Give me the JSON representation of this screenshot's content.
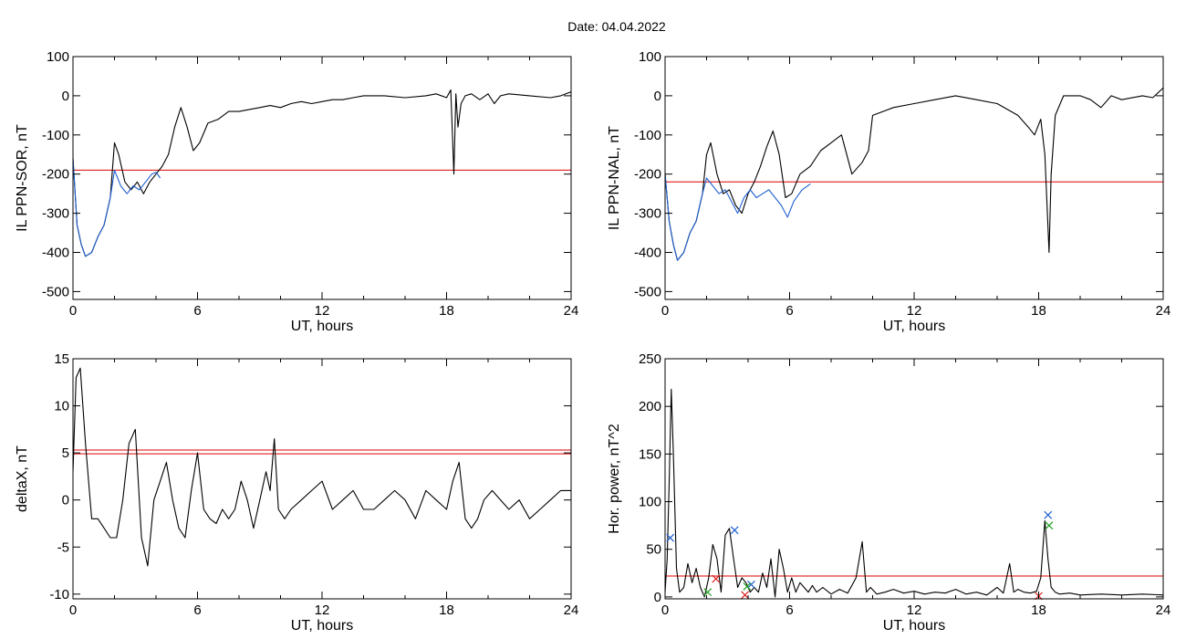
{
  "figure_title": "Date:  04.04.2022",
  "chart_data": [
    {
      "type": "line",
      "id": "sor",
      "xlabel": "UT, hours",
      "ylabel": "IL PPN-SOR, nT",
      "xlim": [
        0,
        24
      ],
      "ylim": [
        -520,
        100
      ],
      "xticks": [
        0,
        6,
        12,
        18,
        24
      ],
      "yticks": [
        100,
        0,
        -100,
        -200,
        -300,
        -400,
        -500
      ],
      "grid": false,
      "hlines": [
        {
          "y": -190,
          "color": "#dd0000"
        }
      ],
      "series": [
        {
          "color": "#000000",
          "x": [
            0,
            0.2,
            0.4,
            0.6,
            0.9,
            1.2,
            1.5,
            1.8,
            2.0,
            2.2,
            2.5,
            2.8,
            3.1,
            3.4,
            3.7,
            4.0,
            4.3,
            4.6,
            4.9,
            5.2,
            5.5,
            5.8,
            6.1,
            6.5,
            7.0,
            7.5,
            8.0,
            8.5,
            9.0,
            9.5,
            10.0,
            10.5,
            11.0,
            11.5,
            12.0,
            12.5,
            13.0,
            13.5,
            14.0,
            15.0,
            16.0,
            17.0,
            17.5,
            18.0,
            18.2,
            18.35,
            18.45,
            18.55,
            18.7,
            18.9,
            19.2,
            19.6,
            20.0,
            20.3,
            20.6,
            21.0,
            22.0,
            23.0,
            23.5,
            24.0
          ],
          "y": [
            -160,
            -330,
            -380,
            -410,
            -400,
            -360,
            -330,
            -260,
            -120,
            -150,
            -220,
            -240,
            -220,
            -250,
            -220,
            -200,
            -180,
            -150,
            -80,
            -30,
            -80,
            -140,
            -120,
            -70,
            -60,
            -40,
            -40,
            -35,
            -30,
            -25,
            -30,
            -20,
            -15,
            -20,
            -15,
            -10,
            -10,
            -5,
            0,
            0,
            -5,
            0,
            5,
            -5,
            15,
            -200,
            5,
            -80,
            -20,
            0,
            5,
            -10,
            5,
            -20,
            0,
            5,
            0,
            -5,
            0,
            10
          ]
        },
        {
          "color": "#1f5fcf",
          "x": [
            0,
            0.2,
            0.4,
            0.6,
            0.9,
            1.2,
            1.5,
            1.8,
            2.0,
            2.3,
            2.6,
            2.9,
            3.2,
            3.5,
            3.8,
            4.0,
            4.2
          ],
          "y": [
            -160,
            -330,
            -380,
            -410,
            -400,
            -360,
            -330,
            -260,
            -190,
            -230,
            -250,
            -230,
            -240,
            -220,
            -200,
            -195,
            -210
          ]
        }
      ]
    },
    {
      "type": "line",
      "id": "nal",
      "xlabel": "UT, hours",
      "ylabel": "IL PPN-NAL, nT",
      "xlim": [
        0,
        24
      ],
      "ylim": [
        -520,
        100
      ],
      "xticks": [
        0,
        6,
        12,
        18,
        24
      ],
      "yticks": [
        100,
        0,
        -100,
        -200,
        -300,
        -400,
        -500
      ],
      "grid": false,
      "hlines": [
        {
          "y": -220,
          "color": "#dd0000"
        }
      ],
      "series": [
        {
          "color": "#000000",
          "x": [
            0,
            0.2,
            0.4,
            0.6,
            0.9,
            1.2,
            1.5,
            1.8,
            2.0,
            2.2,
            2.5,
            2.8,
            3.1,
            3.4,
            3.7,
            4.0,
            4.3,
            4.6,
            4.9,
            5.2,
            5.5,
            5.8,
            6.1,
            6.5,
            7.0,
            7.5,
            8.0,
            8.5,
            9.0,
            9.5,
            9.8,
            10.0,
            10.5,
            11.0,
            12.0,
            13.0,
            14.0,
            15.0,
            16.0,
            17.0,
            17.5,
            17.8,
            18.1,
            18.3,
            18.5,
            18.6,
            18.8,
            19.2,
            20.0,
            20.5,
            21.0,
            21.5,
            22.0,
            23.0,
            23.5,
            24.0
          ],
          "y": [
            -200,
            -320,
            -380,
            -420,
            -400,
            -350,
            -320,
            -250,
            -150,
            -120,
            -200,
            -250,
            -240,
            -280,
            -300,
            -250,
            -220,
            -180,
            -130,
            -90,
            -150,
            -260,
            -250,
            -200,
            -180,
            -140,
            -120,
            -100,
            -200,
            -170,
            -140,
            -50,
            -40,
            -30,
            -20,
            -10,
            0,
            -10,
            -20,
            -50,
            -80,
            -100,
            -60,
            -150,
            -400,
            -200,
            -50,
            0,
            0,
            -10,
            -30,
            0,
            -10,
            0,
            -5,
            20
          ]
        },
        {
          "color": "#1f5fcf",
          "x": [
            0,
            0.2,
            0.4,
            0.6,
            0.9,
            1.2,
            1.5,
            1.8,
            2.0,
            2.3,
            2.6,
            2.9,
            3.2,
            3.5,
            3.8,
            4.1,
            4.4,
            4.7,
            5.0,
            5.3,
            5.6,
            5.9,
            6.2,
            6.6,
            7.0
          ],
          "y": [
            -200,
            -320,
            -380,
            -420,
            -400,
            -350,
            -320,
            -250,
            -210,
            -230,
            -250,
            -240,
            -270,
            -300,
            -260,
            -240,
            -260,
            -250,
            -240,
            -260,
            -280,
            -310,
            -270,
            -240,
            -225
          ]
        }
      ]
    },
    {
      "type": "line",
      "id": "deltax",
      "xlabel": "UT, hours",
      "ylabel": "deltaX, nT",
      "xlim": [
        0,
        24
      ],
      "ylim": [
        -10.5,
        15
      ],
      "xticks": [
        0,
        6,
        12,
        18,
        24
      ],
      "yticks": [
        15,
        10,
        5,
        0,
        -5,
        -10
      ],
      "grid": false,
      "hlines": [
        {
          "y": 5.3,
          "color": "#dd0000"
        },
        {
          "y": 4.9,
          "color": "#dd0000"
        }
      ],
      "series": [
        {
          "color": "#000000",
          "x": [
            0,
            0.15,
            0.35,
            0.6,
            0.9,
            1.2,
            1.5,
            1.8,
            2.1,
            2.4,
            2.7,
            3.0,
            3.3,
            3.6,
            3.9,
            4.2,
            4.5,
            4.8,
            5.1,
            5.4,
            5.7,
            6.0,
            6.3,
            6.6,
            6.9,
            7.2,
            7.5,
            7.8,
            8.1,
            8.4,
            8.7,
            9.0,
            9.3,
            9.5,
            9.7,
            9.9,
            10.2,
            10.5,
            11.0,
            11.5,
            12.0,
            12.5,
            13.0,
            13.5,
            14.0,
            14.5,
            15.0,
            15.5,
            16.0,
            16.5,
            17.0,
            17.5,
            18.0,
            18.3,
            18.6,
            18.9,
            19.2,
            19.5,
            19.8,
            20.2,
            20.6,
            21.0,
            21.5,
            22.0,
            22.5,
            23.0,
            23.5,
            24.0
          ],
          "y": [
            3,
            13,
            14,
            6,
            -2,
            -2,
            -3,
            -4,
            -4,
            0,
            6,
            7.5,
            -4,
            -7,
            0,
            2,
            4,
            0,
            -3,
            -4,
            1,
            5,
            -1,
            -2,
            -2.5,
            -1,
            -2,
            -1,
            2,
            0,
            -3,
            0,
            3,
            1,
            6.5,
            -1,
            -2,
            -1,
            0,
            1,
            2,
            -1,
            0,
            1,
            -1,
            -1,
            0,
            1,
            0,
            -2,
            1,
            0,
            -1,
            2,
            4,
            -2,
            -3,
            -2,
            0,
            1,
            0,
            -1,
            0,
            -2,
            -1,
            0,
            1,
            1
          ]
        }
      ]
    },
    {
      "type": "line",
      "id": "hpower",
      "xlabel": "UT, hours",
      "ylabel": "Hor. power, nT^2",
      "xlim": [
        0,
        24
      ],
      "ylim": [
        -2,
        250
      ],
      "xticks": [
        0,
        6,
        12,
        18,
        24
      ],
      "yticks": [
        250,
        200,
        150,
        100,
        50,
        0
      ],
      "grid": false,
      "hlines": [
        {
          "y": 22,
          "color": "#dd0000"
        }
      ],
      "series": [
        {
          "color": "#000000",
          "x": [
            0,
            0.1,
            0.2,
            0.3,
            0.4,
            0.55,
            0.7,
            0.9,
            1.1,
            1.3,
            1.5,
            1.7,
            1.9,
            2.1,
            2.3,
            2.5,
            2.7,
            2.9,
            3.1,
            3.3,
            3.5,
            3.7,
            3.9,
            4.1,
            4.3,
            4.5,
            4.7,
            4.9,
            5.1,
            5.3,
            5.5,
            5.7,
            5.9,
            6.1,
            6.3,
            6.5,
            6.7,
            6.9,
            7.1,
            7.3,
            7.6,
            8.0,
            8.4,
            8.8,
            9.2,
            9.5,
            9.7,
            9.9,
            10.2,
            10.6,
            11.0,
            11.5,
            12.0,
            12.5,
            13.0,
            13.5,
            14.0,
            14.5,
            15.0,
            15.5,
            16.0,
            16.3,
            16.6,
            16.8,
            17.0,
            17.3,
            17.6,
            17.9,
            18.1,
            18.3,
            18.45,
            18.6,
            18.8,
            19.0,
            19.5,
            20.0,
            21.0,
            22.0,
            23.0,
            24.0
          ],
          "y": [
            5,
            40,
            120,
            218,
            150,
            30,
            5,
            10,
            35,
            15,
            30,
            10,
            0,
            20,
            55,
            40,
            5,
            65,
            72,
            40,
            10,
            20,
            15,
            5,
            10,
            5,
            25,
            10,
            40,
            0,
            50,
            30,
            5,
            20,
            5,
            15,
            10,
            5,
            12,
            5,
            10,
            3,
            8,
            4,
            20,
            58,
            5,
            10,
            3,
            5,
            8,
            4,
            6,
            3,
            5,
            4,
            8,
            3,
            5,
            2,
            10,
            4,
            35,
            5,
            8,
            5,
            4,
            6,
            20,
            80,
            40,
            10,
            5,
            3,
            4,
            2,
            3,
            2,
            3,
            2
          ]
        }
      ],
      "markers": [
        {
          "x": 0.25,
          "y": 62,
          "color": "#1f5fcf"
        },
        {
          "x": 3.35,
          "y": 70,
          "color": "#1f5fcf"
        },
        {
          "x": 4.15,
          "y": 13,
          "color": "#1f5fcf"
        },
        {
          "x": 18.45,
          "y": 86,
          "color": "#1f5fcf"
        },
        {
          "x": 2.05,
          "y": 5,
          "color": "#22a022"
        },
        {
          "x": 3.95,
          "y": 11,
          "color": "#22a022"
        },
        {
          "x": 18.5,
          "y": 75,
          "color": "#22a022"
        },
        {
          "x": 2.45,
          "y": 19,
          "color": "#dd2222"
        },
        {
          "x": 3.85,
          "y": 2,
          "color": "#dd2222"
        },
        {
          "x": 18.0,
          "y": 1,
          "color": "#dd2222"
        }
      ]
    }
  ]
}
